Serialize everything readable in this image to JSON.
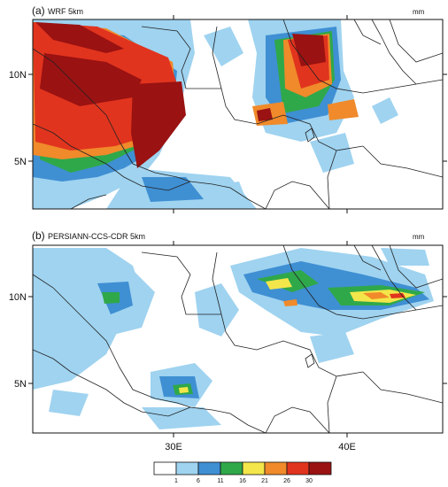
{
  "panels": [
    {
      "label": "(a)",
      "title": "WRF 5km",
      "units": "mm",
      "y_ticks": [
        "10N",
        "5N"
      ],
      "x_ticks": []
    },
    {
      "label": "(b)",
      "title": "PERSIANN-CCS-CDR 5km",
      "units": "mm",
      "y_ticks": [
        "10N",
        "5N"
      ],
      "x_ticks": [
        "30E",
        "40E"
      ]
    }
  ],
  "colorbar": {
    "colors": [
      "#ffffff",
      "#9fd3f0",
      "#3f8fd3",
      "#2fa84a",
      "#f3e64a",
      "#f08a2a",
      "#e1341e",
      "#9a1212"
    ],
    "labels": [
      "1",
      "6",
      "11",
      "16",
      "21",
      "26",
      "30"
    ]
  }
}
